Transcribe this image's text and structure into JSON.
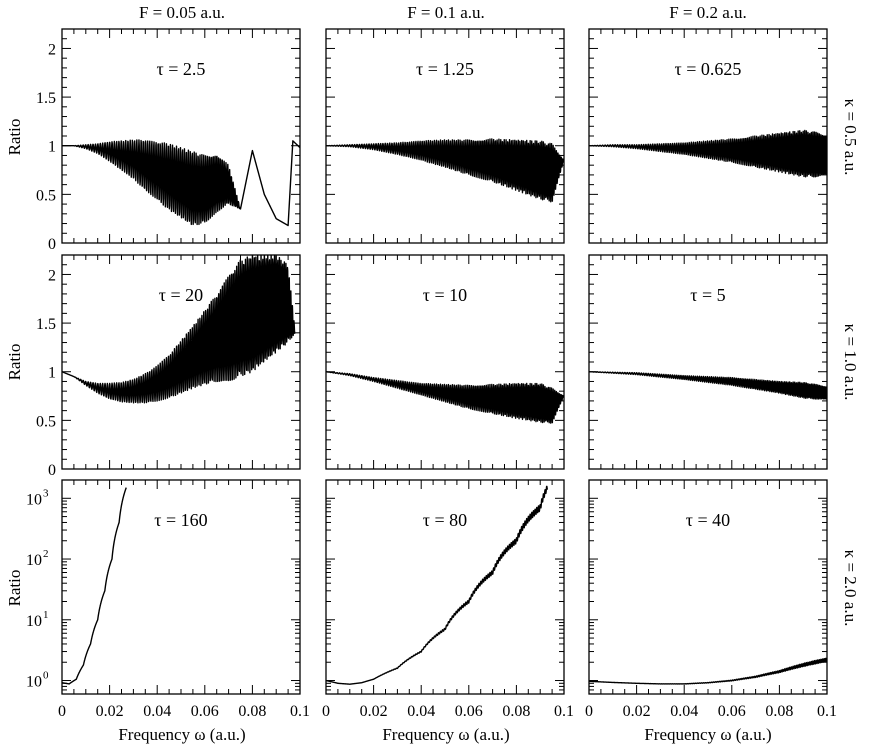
{
  "column_headers": [
    "F = 0.05 a.u.",
    "F = 0.1 a.u.",
    "F = 0.2 a.u."
  ],
  "row_labels": [
    "κ = 0.5 a.u.",
    "κ = 1.0 a.u.",
    "κ = 2.0 a.u."
  ],
  "xlabel": "Frequency ω (a.u.)",
  "ylabel": "Ratio",
  "line_color": "#000000",
  "x_ticks": [
    "0",
    "0.02",
    "0.04",
    "0.06",
    "0.08",
    "0.1"
  ],
  "linear_y_ticks": [
    "0",
    "0.5",
    "1",
    "1.5",
    "2"
  ],
  "log_y_ticks": [
    {
      "base": "10",
      "exp": "0"
    },
    {
      "base": "10",
      "exp": "1"
    },
    {
      "base": "10",
      "exp": "2"
    },
    {
      "base": "10",
      "exp": "3"
    }
  ],
  "chart_data": [
    {
      "type": "line",
      "row": 0,
      "col": 0,
      "annotation": "τ = 2.5",
      "xlim": [
        0,
        0.1
      ],
      "ylim": [
        0,
        2.2
      ],
      "yscale": "linear",
      "x": [
        0,
        0.005,
        0.01,
        0.015,
        0.02,
        0.025,
        0.03,
        0.035,
        0.04,
        0.045,
        0.05,
        0.055,
        0.06,
        0.065,
        0.07,
        0.075,
        0.08,
        0.085,
        0.09,
        0.095,
        0.097,
        0.1
      ],
      "y": [
        1.0,
        1.0,
        0.99,
        0.97,
        0.94,
        0.9,
        0.86,
        0.8,
        0.74,
        0.68,
        0.62,
        0.56,
        0.55,
        0.62,
        0.6,
        0.35,
        0.95,
        0.5,
        0.25,
        0.18,
        1.05,
        0.98
      ],
      "osc": [
        0,
        0,
        0.02,
        0.05,
        0.1,
        0.15,
        0.2,
        0.26,
        0.3,
        0.34,
        0.36,
        0.38,
        0.35,
        0.3,
        0.2,
        0,
        0,
        0,
        0,
        0,
        0,
        0
      ]
    },
    {
      "type": "line",
      "row": 0,
      "col": 1,
      "annotation": "τ = 1.25",
      "xlim": [
        0,
        0.1
      ],
      "ylim": [
        0,
        2.2
      ],
      "yscale": "linear",
      "x": [
        0,
        0.01,
        0.02,
        0.03,
        0.04,
        0.05,
        0.06,
        0.07,
        0.08,
        0.09,
        0.095,
        0.1
      ],
      "y": [
        1.0,
        1.0,
        0.99,
        0.97,
        0.95,
        0.92,
        0.88,
        0.85,
        0.8,
        0.75,
        0.72,
        0.85
      ],
      "osc": [
        0,
        0.01,
        0.03,
        0.06,
        0.1,
        0.14,
        0.18,
        0.22,
        0.26,
        0.3,
        0.3,
        0
      ]
    },
    {
      "type": "line",
      "row": 0,
      "col": 2,
      "annotation": "τ = 0.625",
      "xlim": [
        0,
        0.1
      ],
      "ylim": [
        0,
        2.2
      ],
      "yscale": "linear",
      "x": [
        0,
        0.01,
        0.02,
        0.03,
        0.04,
        0.05,
        0.06,
        0.07,
        0.08,
        0.09,
        0.1
      ],
      "y": [
        1.0,
        1.0,
        0.99,
        0.98,
        0.97,
        0.96,
        0.95,
        0.94,
        0.93,
        0.92,
        0.9
      ],
      "osc": [
        0,
        0.01,
        0.02,
        0.04,
        0.06,
        0.09,
        0.12,
        0.16,
        0.2,
        0.24,
        0.22
      ]
    },
    {
      "type": "line",
      "row": 1,
      "col": 0,
      "annotation": "τ = 20",
      "xlim": [
        0,
        0.1
      ],
      "ylim": [
        0,
        2.2
      ],
      "yscale": "linear",
      "x": [
        0,
        0.005,
        0.01,
        0.015,
        0.02,
        0.025,
        0.03,
        0.035,
        0.04,
        0.045,
        0.05,
        0.055,
        0.06,
        0.065,
        0.07,
        0.075,
        0.08,
        0.085,
        0.09,
        0.095,
        0.098
      ],
      "y": [
        1.0,
        0.95,
        0.88,
        0.83,
        0.8,
        0.79,
        0.8,
        0.83,
        0.88,
        0.95,
        1.05,
        1.15,
        1.25,
        1.35,
        1.45,
        1.55,
        1.6,
        1.65,
        1.7,
        1.7,
        1.4
      ],
      "osc": [
        0,
        0,
        0.02,
        0.05,
        0.08,
        0.1,
        0.12,
        0.15,
        0.18,
        0.22,
        0.27,
        0.32,
        0.38,
        0.45,
        0.55,
        0.6,
        0.6,
        0.55,
        0.5,
        0.4,
        0
      ]
    },
    {
      "type": "line",
      "row": 1,
      "col": 1,
      "annotation": "τ = 10",
      "xlim": [
        0,
        0.1
      ],
      "ylim": [
        0,
        2.2
      ],
      "yscale": "linear",
      "x": [
        0,
        0.01,
        0.02,
        0.03,
        0.04,
        0.05,
        0.06,
        0.07,
        0.08,
        0.09,
        0.095,
        0.1
      ],
      "y": [
        1.0,
        0.97,
        0.92,
        0.87,
        0.82,
        0.78,
        0.74,
        0.72,
        0.7,
        0.68,
        0.65,
        0.75
      ],
      "osc": [
        0,
        0.01,
        0.02,
        0.04,
        0.06,
        0.09,
        0.12,
        0.15,
        0.18,
        0.2,
        0.18,
        0
      ]
    },
    {
      "type": "line",
      "row": 1,
      "col": 2,
      "annotation": "τ = 5",
      "xlim": [
        0,
        0.1
      ],
      "ylim": [
        0,
        2.2
      ],
      "yscale": "linear",
      "x": [
        0,
        0.01,
        0.02,
        0.03,
        0.04,
        0.05,
        0.06,
        0.07,
        0.08,
        0.09,
        0.1
      ],
      "y": [
        1.0,
        0.99,
        0.98,
        0.96,
        0.94,
        0.92,
        0.9,
        0.87,
        0.84,
        0.81,
        0.78
      ],
      "osc": [
        0,
        0.005,
        0.01,
        0.015,
        0.02,
        0.03,
        0.04,
        0.05,
        0.06,
        0.08,
        0.07
      ]
    },
    {
      "type": "line",
      "row": 2,
      "col": 0,
      "annotation": "τ = 160",
      "xlim": [
        0,
        0.1
      ],
      "ylim": [
        0.6,
        2000
      ],
      "yscale": "log",
      "x": [
        0,
        0.003,
        0.006,
        0.009,
        0.012,
        0.015,
        0.018,
        0.021,
        0.024,
        0.027
      ],
      "y": [
        0.92,
        0.88,
        1.05,
        1.8,
        4,
        10,
        30,
        100,
        400,
        1500
      ],
      "osc": [
        0,
        0,
        0,
        0,
        0,
        0,
        0,
        0,
        0,
        0
      ]
    },
    {
      "type": "line",
      "row": 2,
      "col": 1,
      "annotation": "τ = 80",
      "xlim": [
        0,
        0.1
      ],
      "ylim": [
        0.6,
        2000
      ],
      "yscale": "log",
      "x": [
        0,
        0.005,
        0.01,
        0.015,
        0.02,
        0.03,
        0.04,
        0.05,
        0.06,
        0.07,
        0.08,
        0.09,
        0.093
      ],
      "y": [
        1.0,
        0.9,
        0.87,
        0.92,
        1.05,
        1.6,
        3,
        7,
        20,
        60,
        200,
        700,
        1500
      ],
      "osc": [
        0,
        0,
        0,
        0,
        0,
        0.01,
        0.02,
        0.04,
        0.06,
        0.08,
        0.1,
        0.12,
        0.1
      ]
    },
    {
      "type": "line",
      "row": 2,
      "col": 2,
      "annotation": "τ = 40",
      "xlim": [
        0,
        0.1
      ],
      "ylim": [
        0.6,
        2000
      ],
      "yscale": "log",
      "x": [
        0,
        0.01,
        0.02,
        0.03,
        0.04,
        0.05,
        0.06,
        0.07,
        0.08,
        0.09,
        0.1
      ],
      "y": [
        0.97,
        0.93,
        0.9,
        0.88,
        0.88,
        0.92,
        1.0,
        1.15,
        1.4,
        1.8,
        2.2
      ],
      "osc": [
        0,
        0,
        0,
        0.002,
        0.004,
        0.008,
        0.015,
        0.025,
        0.04,
        0.06,
        0.07
      ]
    }
  ]
}
